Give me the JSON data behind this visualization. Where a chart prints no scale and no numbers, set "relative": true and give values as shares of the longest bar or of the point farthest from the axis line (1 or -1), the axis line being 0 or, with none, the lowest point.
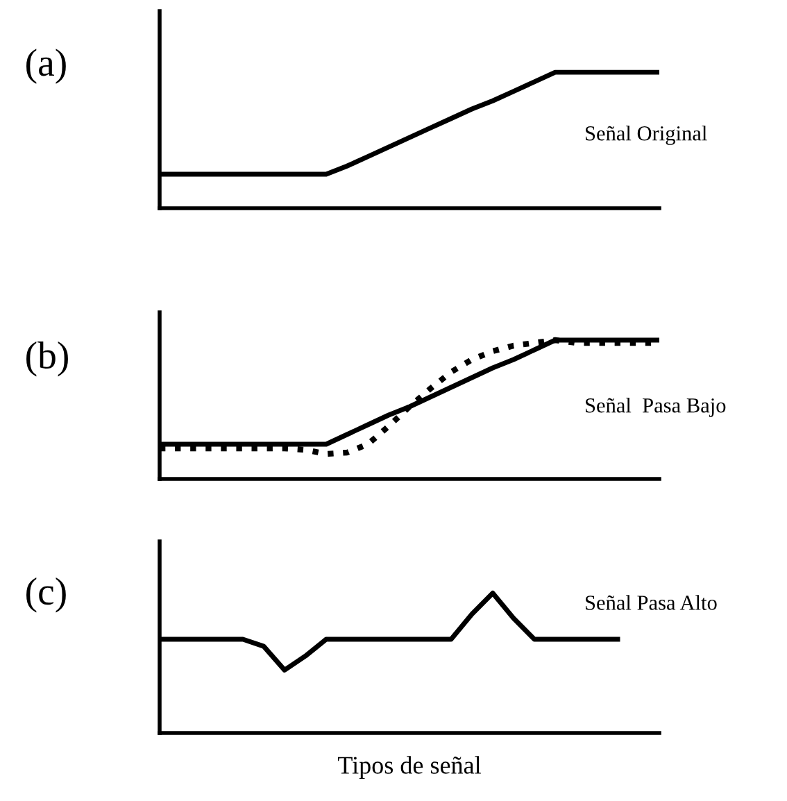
{
  "chart_data": [
    {
      "type": "line",
      "relative": true,
      "title": "(a)",
      "annotations": [
        "Señal Original"
      ],
      "categories": [
        null,
        null,
        null,
        null,
        null,
        null,
        null,
        null,
        null,
        null,
        null,
        null,
        null,
        null,
        null,
        null,
        null,
        null,
        null,
        null,
        null,
        null,
        null,
        null,
        null
      ],
      "series": [
        {
          "color": "#000000",
          "line_style": "solid",
          "values": [
            0.25,
            0.25,
            0.25,
            0.25,
            0.25,
            0.25,
            0.25,
            0.25,
            0.25,
            0.31,
            0.38,
            0.45,
            0.52,
            0.59,
            0.66,
            0.73,
            0.79,
            0.86,
            0.93,
            1,
            1,
            1,
            1,
            1,
            1
          ]
        }
      ]
    },
    {
      "type": "line",
      "relative": true,
      "title": "(b)",
      "annotations": [
        "Señal  Pasa Bajo"
      ],
      "categories": [
        null,
        null,
        null,
        null,
        null,
        null,
        null,
        null,
        null,
        null,
        null,
        null,
        null,
        null,
        null,
        null,
        null,
        null,
        null,
        null,
        null,
        null,
        null,
        null,
        null
      ],
      "series": [
        {
          "color": "#000000",
          "line_style": "solid",
          "values": [
            0.25,
            0.25,
            0.25,
            0.25,
            0.25,
            0.25,
            0.25,
            0.25,
            0.25,
            0.32,
            0.39,
            0.46,
            0.52,
            0.59,
            0.66,
            0.73,
            0.8,
            0.86,
            0.93,
            1,
            1,
            1,
            1,
            1,
            1
          ]
        },
        {
          "color": "#000000",
          "line_style": "dotted",
          "values": [
            0.22,
            0.22,
            0.22,
            0.22,
            0.22,
            0.22,
            0.22,
            0.21,
            0.18,
            0.19,
            0.25,
            0.38,
            0.52,
            0.65,
            0.77,
            0.86,
            0.92,
            0.96,
            0.98,
            1,
            0.98,
            0.98,
            0.98,
            0.98,
            0.98
          ]
        }
      ]
    },
    {
      "type": "line",
      "relative": true,
      "title": "(c)",
      "annotations": [
        "Señal Pasa Alto"
      ],
      "xlabel": "Tipos de señal",
      "categories": [
        null,
        null,
        null,
        null,
        null,
        null,
        null,
        null,
        null,
        null,
        null,
        null,
        null,
        null,
        null,
        null,
        null,
        null,
        null,
        null,
        null,
        null,
        null,
        null,
        null
      ],
      "series": [
        {
          "color": "#000000",
          "line_style": "solid",
          "values": [
            0.67,
            0.67,
            0.67,
            0.67,
            0.67,
            0.62,
            0.45,
            0.55,
            0.67,
            0.67,
            0.67,
            0.67,
            0.67,
            0.67,
            0.67,
            0.85,
            1,
            0.82,
            0.67,
            0.67,
            0.67,
            0.67,
            0.67,
            null,
            null
          ]
        }
      ]
    }
  ]
}
